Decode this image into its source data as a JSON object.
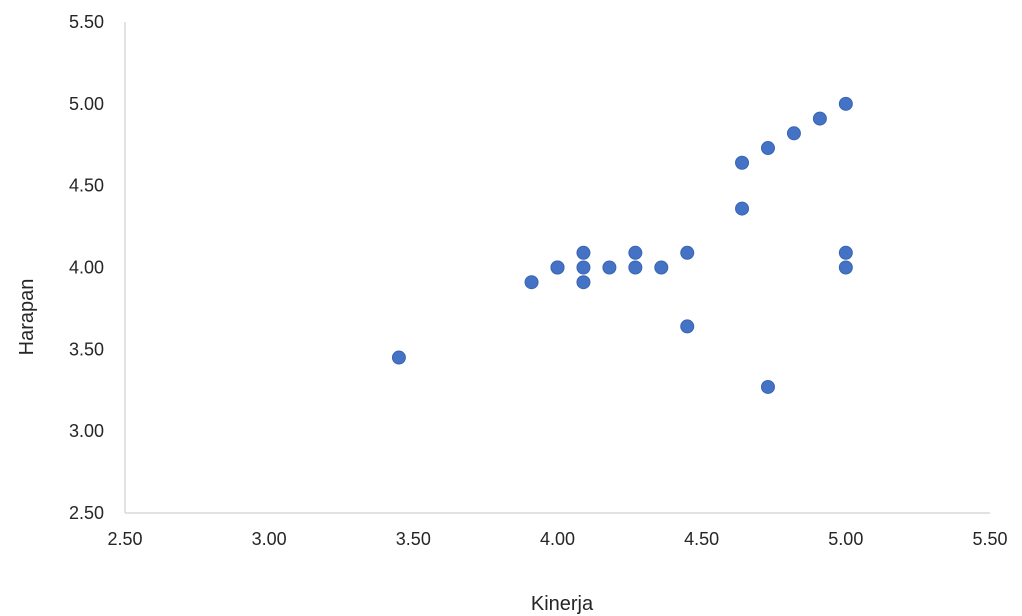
{
  "chart_data": {
    "type": "scatter",
    "title": "",
    "xlabel": "Kinerja",
    "ylabel": "Harapan",
    "xlim": [
      2.5,
      5.5
    ],
    "ylim": [
      2.5,
      5.5
    ],
    "x_ticks": [
      "2.50",
      "3.00",
      "3.50",
      "4.00",
      "4.50",
      "5.00",
      "5.50"
    ],
    "y_ticks": [
      "2.50",
      "3.00",
      "3.50",
      "4.00",
      "4.50",
      "5.00",
      "5.50"
    ],
    "grid": false,
    "legend": "none",
    "series": [
      {
        "color": "#4472C4",
        "points": [
          [
            3.45,
            3.45
          ],
          [
            3.91,
            3.91
          ],
          [
            4.0,
            4.0
          ],
          [
            4.0,
            4.0
          ],
          [
            4.09,
            4.09
          ],
          [
            4.09,
            4.0
          ],
          [
            4.09,
            3.91
          ],
          [
            4.18,
            4.0
          ],
          [
            4.27,
            4.09
          ],
          [
            4.27,
            4.0
          ],
          [
            4.36,
            4.0
          ],
          [
            4.45,
            4.09
          ],
          [
            4.45,
            3.64
          ],
          [
            4.64,
            4.64
          ],
          [
            4.64,
            4.36
          ],
          [
            4.73,
            4.73
          ],
          [
            4.73,
            3.27
          ],
          [
            4.82,
            4.82
          ],
          [
            4.91,
            4.91
          ],
          [
            5.0,
            5.0
          ],
          [
            5.0,
            4.09
          ],
          [
            5.0,
            4.0
          ]
        ]
      }
    ]
  }
}
